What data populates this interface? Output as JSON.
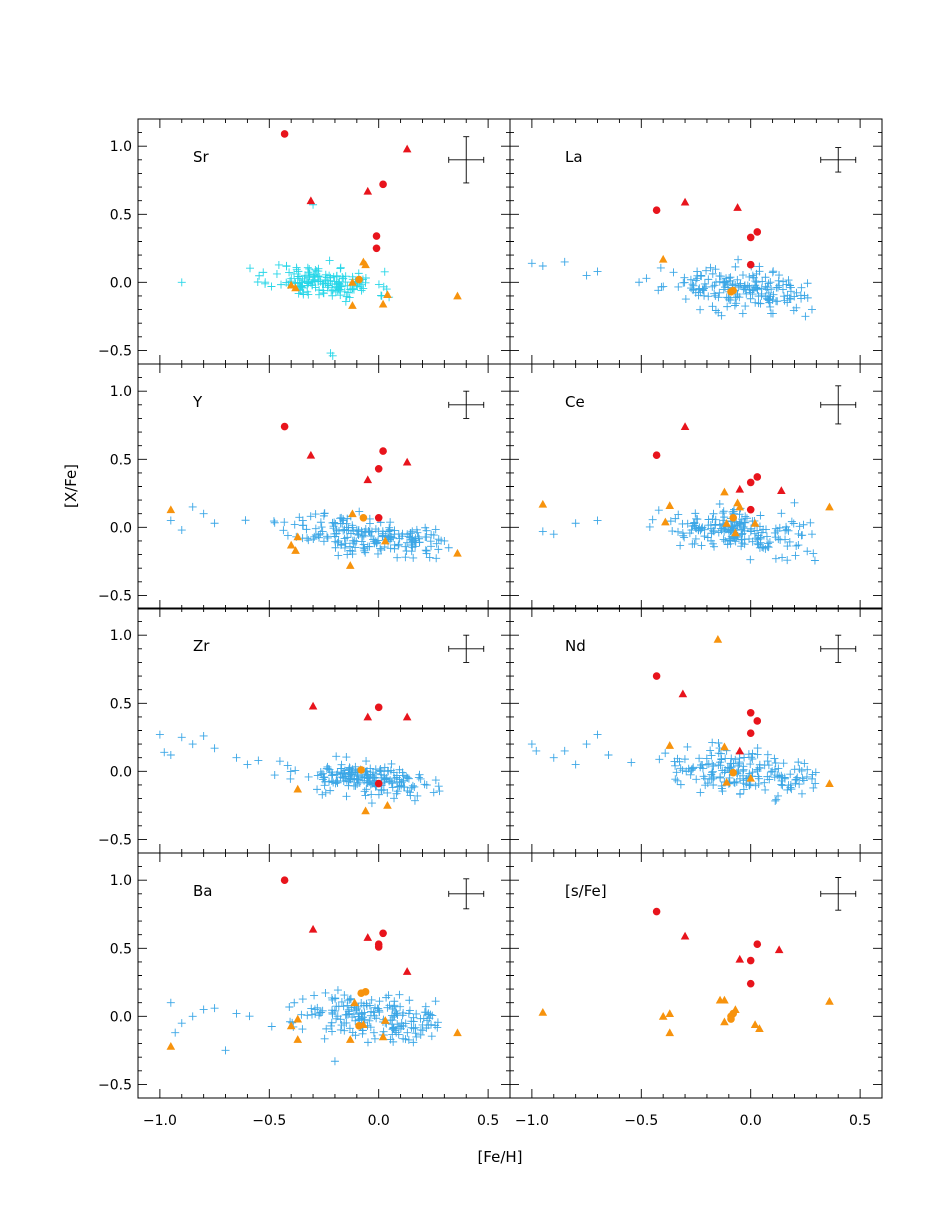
{
  "chart_data": {
    "type": "scatter",
    "xlabel": "[Fe/H]",
    "ylabel": "[X/Fe]",
    "xlim": [
      -1.1,
      0.6
    ],
    "ylim": [
      -0.6,
      1.2
    ],
    "xticks": [
      -1.0,
      -0.5,
      0.0,
      0.5
    ],
    "xtick_labels": [
      "−1.0",
      "−0.5",
      "0.0",
      "0.5"
    ],
    "yticks": [
      -0.5,
      0.0,
      0.5,
      1.0
    ],
    "ytick_labels": [
      "−0.5",
      "0.0",
      "0.5",
      "1.0"
    ],
    "colors": {
      "field": "#3aa6e6",
      "field_sr": "#27d6e8",
      "red": "#e8141c",
      "orange": "#f7930d",
      "axis": "#000000"
    },
    "marker_types": {
      "field": "plus",
      "red_circle": "circle",
      "red_triangle": "triangle",
      "orange_triangle": "triangle",
      "orange_circle": "circle"
    },
    "grid": false,
    "legend": "none",
    "panels": [
      {
        "label": "Sr",
        "field_color": "field_sr",
        "field_center": [
          -0.25,
          0.0
        ],
        "field_spread": [
          0.12,
          0.06
        ],
        "field_count": 160,
        "field_seed": 11,
        "field_extra": [
          [
            -0.22,
            -0.52
          ],
          [
            -0.21,
            -0.54
          ],
          [
            -0.3,
            0.57
          ],
          [
            -0.9,
            0.0
          ]
        ],
        "red_circles": [
          [
            -0.43,
            1.09
          ],
          [
            0.02,
            0.72
          ],
          [
            -0.01,
            0.34
          ],
          [
            -0.01,
            0.25
          ]
        ],
        "red_triangles": [
          [
            -0.31,
            0.6
          ],
          [
            -0.05,
            0.67
          ],
          [
            0.13,
            0.98
          ]
        ],
        "orange_triangles": [
          [
            -0.4,
            -0.02
          ],
          [
            -0.38,
            -0.04
          ],
          [
            -0.07,
            0.15
          ],
          [
            -0.06,
            0.13
          ],
          [
            -0.12,
            0.0
          ],
          [
            -0.12,
            -0.17
          ],
          [
            0.02,
            -0.16
          ],
          [
            0.04,
            -0.09
          ],
          [
            0.36,
            -0.1
          ]
        ],
        "orange_circles": [
          [
            -0.09,
            0.02
          ]
        ],
        "error_bar": [
          0.4,
          0.9,
          0.08,
          0.17
        ]
      },
      {
        "label": "La",
        "field_color": "field",
        "field_center": [
          -0.05,
          -0.05
        ],
        "field_spread": [
          0.17,
          0.07
        ],
        "field_count": 190,
        "field_seed": 23,
        "field_extra": [
          [
            -1.0,
            0.14
          ],
          [
            -0.95,
            0.12
          ],
          [
            -0.85,
            0.15
          ],
          [
            -0.75,
            0.05
          ],
          [
            -0.7,
            0.08
          ],
          [
            0.28,
            -0.2
          ],
          [
            0.25,
            -0.25
          ]
        ],
        "red_circles": [
          [
            -0.43,
            0.53
          ],
          [
            0.03,
            0.37
          ],
          [
            0.0,
            0.33
          ],
          [
            0.0,
            0.13
          ]
        ],
        "red_triangles": [
          [
            -0.3,
            0.59
          ],
          [
            -0.06,
            0.55
          ]
        ],
        "orange_triangles": [
          [
            -0.4,
            0.17
          ]
        ],
        "orange_circles": [
          [
            -0.09,
            -0.07
          ],
          [
            -0.08,
            -0.06
          ]
        ],
        "error_bar": [
          0.4,
          0.9,
          0.08,
          0.09
        ]
      },
      {
        "label": "Y",
        "field_color": "field",
        "field_center": [
          -0.05,
          -0.06
        ],
        "field_spread": [
          0.18,
          0.07
        ],
        "field_count": 210,
        "field_seed": 37,
        "field_extra": [
          [
            -0.95,
            0.05
          ],
          [
            -0.9,
            -0.02
          ],
          [
            -0.85,
            0.15
          ],
          [
            -0.8,
            0.1
          ],
          [
            -0.75,
            0.03
          ],
          [
            0.3,
            -0.1
          ],
          [
            0.32,
            -0.15
          ]
        ],
        "red_circles": [
          [
            -0.43,
            0.74
          ],
          [
            0.02,
            0.56
          ],
          [
            0.0,
            0.43
          ],
          [
            0.0,
            0.07
          ]
        ],
        "red_triangles": [
          [
            -0.31,
            0.53
          ],
          [
            -0.05,
            0.35
          ],
          [
            0.13,
            0.48
          ]
        ],
        "orange_triangles": [
          [
            -0.95,
            0.13
          ],
          [
            -0.4,
            -0.13
          ],
          [
            -0.38,
            -0.17
          ],
          [
            -0.37,
            -0.07
          ],
          [
            -0.12,
            0.1
          ],
          [
            -0.13,
            -0.28
          ],
          [
            0.03,
            -0.1
          ],
          [
            0.36,
            -0.19
          ]
        ],
        "orange_circles": [
          [
            -0.07,
            0.07
          ]
        ],
        "error_bar": [
          0.4,
          0.9,
          0.08,
          0.1
        ]
      },
      {
        "label": "Ce",
        "field_color": "field",
        "field_center": [
          -0.05,
          -0.03
        ],
        "field_spread": [
          0.17,
          0.07
        ],
        "field_count": 200,
        "field_seed": 41,
        "field_extra": [
          [
            -0.95,
            -0.03
          ],
          [
            -0.9,
            -0.05
          ],
          [
            -0.8,
            0.03
          ],
          [
            -0.7,
            0.05
          ],
          [
            0.2,
            0.18
          ],
          [
            0.28,
            -0.05
          ]
        ],
        "red_circles": [
          [
            -0.43,
            0.53
          ],
          [
            0.03,
            0.37
          ],
          [
            0.0,
            0.33
          ],
          [
            0.0,
            0.13
          ]
        ],
        "red_triangles": [
          [
            -0.3,
            0.74
          ],
          [
            -0.05,
            0.28
          ],
          [
            0.14,
            0.27
          ]
        ],
        "orange_triangles": [
          [
            -0.95,
            0.17
          ],
          [
            -0.37,
            0.16
          ],
          [
            -0.39,
            0.04
          ],
          [
            -0.12,
            0.26
          ],
          [
            -0.06,
            0.18
          ],
          [
            -0.05,
            0.15
          ],
          [
            -0.07,
            -0.04
          ],
          [
            -0.11,
            0.03
          ],
          [
            0.02,
            0.03
          ],
          [
            0.36,
            0.15
          ]
        ],
        "orange_circles": [
          [
            -0.08,
            0.07
          ]
        ],
        "error_bar": [
          0.4,
          0.9,
          0.08,
          0.14
        ]
      },
      {
        "label": "Zr",
        "field_color": "field",
        "field_center": [
          -0.05,
          -0.06
        ],
        "field_spread": [
          0.16,
          0.06
        ],
        "field_count": 200,
        "field_seed": 53,
        "field_extra": [
          [
            -1.0,
            0.27
          ],
          [
            -0.98,
            0.14
          ],
          [
            -0.95,
            0.12
          ],
          [
            -0.9,
            0.25
          ],
          [
            -0.85,
            0.2
          ],
          [
            -0.8,
            0.26
          ],
          [
            -0.75,
            0.17
          ],
          [
            -0.65,
            0.1
          ],
          [
            -0.6,
            0.05
          ],
          [
            -0.55,
            0.08
          ]
        ],
        "red_circles": [
          [
            0.0,
            0.47
          ],
          [
            0.0,
            -0.09
          ]
        ],
        "red_triangles": [
          [
            -0.3,
            0.48
          ],
          [
            -0.05,
            0.4
          ],
          [
            0.13,
            0.4
          ]
        ],
        "orange_triangles": [
          [
            -0.37,
            -0.13
          ],
          [
            -0.06,
            -0.29
          ],
          [
            0.04,
            -0.25
          ]
        ],
        "orange_circles": [
          [
            -0.08,
            0.01
          ]
        ],
        "error_bar": [
          0.4,
          0.9,
          0.08,
          0.1
        ]
      },
      {
        "label": "Nd",
        "field_color": "field",
        "field_center": [
          -0.05,
          -0.02
        ],
        "field_spread": [
          0.17,
          0.08
        ],
        "field_count": 190,
        "field_seed": 67,
        "field_extra": [
          [
            -1.0,
            0.2
          ],
          [
            -0.98,
            0.15
          ],
          [
            -0.9,
            0.1
          ],
          [
            -0.85,
            0.15
          ],
          [
            -0.8,
            0.05
          ],
          [
            -0.75,
            0.2
          ],
          [
            -0.7,
            0.27
          ],
          [
            -0.65,
            0.12
          ]
        ],
        "red_circles": [
          [
            -0.43,
            0.7
          ],
          [
            0.0,
            0.43
          ],
          [
            0.03,
            0.37
          ],
          [
            0.0,
            0.28
          ]
        ],
        "red_triangles": [
          [
            -0.31,
            0.57
          ],
          [
            -0.05,
            0.15
          ]
        ],
        "orange_triangles": [
          [
            -0.15,
            0.97
          ],
          [
            -0.37,
            0.19
          ],
          [
            -0.12,
            0.18
          ],
          [
            -0.11,
            -0.08
          ],
          [
            0.0,
            -0.05
          ],
          [
            0.36,
            -0.09
          ]
        ],
        "orange_circles": [
          [
            -0.08,
            -0.01
          ]
        ],
        "error_bar": [
          0.4,
          0.9,
          0.08,
          0.1
        ]
      },
      {
        "label": "Ba",
        "field_color": "field",
        "field_center": [
          -0.03,
          0.0
        ],
        "field_spread": [
          0.18,
          0.08
        ],
        "field_count": 200,
        "field_seed": 79,
        "field_extra": [
          [
            -0.95,
            0.1
          ],
          [
            -0.93,
            -0.12
          ],
          [
            -0.9,
            -0.05
          ],
          [
            -0.85,
            0.0
          ],
          [
            -0.8,
            0.05
          ],
          [
            -0.75,
            0.06
          ],
          [
            -0.7,
            -0.25
          ],
          [
            -0.65,
            0.02
          ],
          [
            -0.2,
            -0.33
          ]
        ],
        "red_circles": [
          [
            -0.43,
            1.0
          ],
          [
            0.02,
            0.61
          ],
          [
            0.0,
            0.53
          ],
          [
            0.0,
            0.51
          ]
        ],
        "red_triangles": [
          [
            -0.3,
            0.64
          ],
          [
            -0.05,
            0.58
          ],
          [
            0.13,
            0.33
          ]
        ],
        "orange_triangles": [
          [
            -0.95,
            -0.22
          ],
          [
            -0.4,
            -0.07
          ],
          [
            -0.37,
            -0.02
          ],
          [
            -0.37,
            -0.17
          ],
          [
            -0.11,
            0.1
          ],
          [
            -0.07,
            -0.06
          ],
          [
            -0.13,
            -0.17
          ],
          [
            0.02,
            -0.15
          ],
          [
            0.03,
            -0.03
          ],
          [
            0.36,
            -0.12
          ]
        ],
        "orange_circles": [
          [
            -0.08,
            0.17
          ],
          [
            -0.06,
            0.18
          ],
          [
            -0.09,
            -0.07
          ]
        ],
        "error_bar": [
          0.4,
          0.9,
          0.08,
          0.11
        ]
      },
      {
        "label": "[s/Fe]",
        "field_color": "field",
        "field_center": [
          0,
          0
        ],
        "field_spread": [
          0,
          0
        ],
        "field_count": 0,
        "field_seed": 1,
        "field_extra": [],
        "red_circles": [
          [
            -0.43,
            0.77
          ],
          [
            0.03,
            0.53
          ],
          [
            0.0,
            0.41
          ],
          [
            0.0,
            0.24
          ]
        ],
        "red_triangles": [
          [
            -0.3,
            0.59
          ],
          [
            -0.05,
            0.42
          ],
          [
            0.13,
            0.49
          ]
        ],
        "orange_triangles": [
          [
            -0.95,
            0.03
          ],
          [
            -0.4,
            0.0
          ],
          [
            -0.37,
            0.02
          ],
          [
            -0.37,
            -0.12
          ],
          [
            -0.14,
            0.12
          ],
          [
            -0.12,
            0.12
          ],
          [
            -0.12,
            -0.04
          ],
          [
            -0.07,
            0.05
          ],
          [
            0.02,
            -0.06
          ],
          [
            0.04,
            -0.09
          ],
          [
            0.36,
            0.11
          ]
        ],
        "orange_circles": [
          [
            -0.09,
            0.0
          ],
          [
            -0.08,
            0.02
          ],
          [
            -0.09,
            -0.02
          ]
        ],
        "error_bar": [
          0.4,
          0.9,
          0.08,
          0.12
        ]
      }
    ]
  }
}
